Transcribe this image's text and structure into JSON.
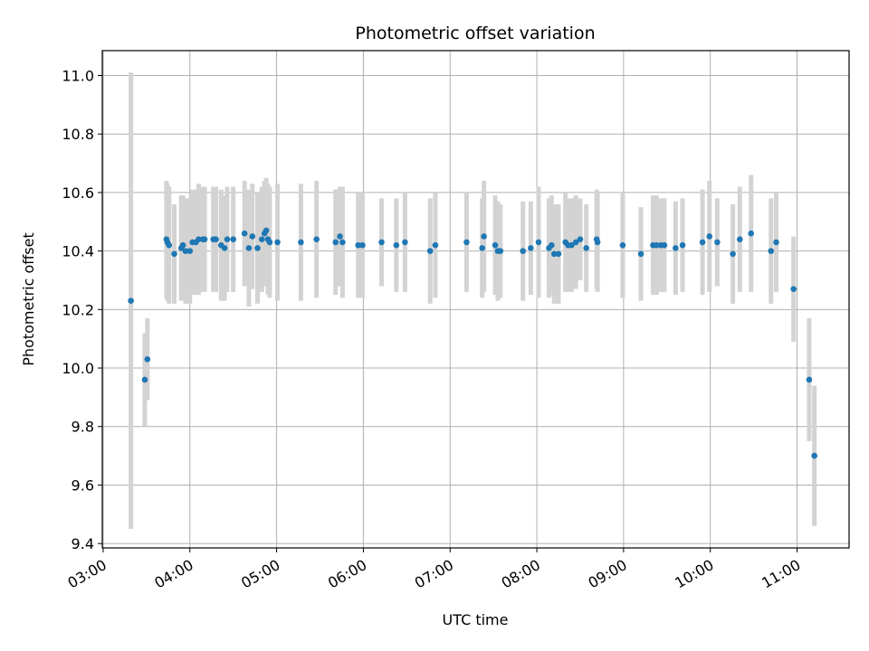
{
  "chart_data": {
    "type": "scatter",
    "title": "Photometric offset variation",
    "xlabel": "UTC time",
    "ylabel": "Photometric offset",
    "x_unit": "hours UTC",
    "xlim": [
      2.99,
      11.6
    ],
    "ylim": [
      9.385,
      11.085
    ],
    "grid": true,
    "x_ticks": [
      3,
      4,
      5,
      6,
      7,
      8,
      9,
      10,
      11
    ],
    "x_tick_labels": [
      "03:00",
      "04:00",
      "05:00",
      "06:00",
      "07:00",
      "08:00",
      "09:00",
      "10:00",
      "11:00"
    ],
    "y_ticks": [
      9.4,
      9.6,
      9.8,
      10.0,
      10.2,
      10.4,
      10.6,
      10.8,
      11.0
    ],
    "y_tick_labels": [
      "9.4",
      "9.6",
      "9.8",
      "10.0",
      "10.2",
      "10.4",
      "10.6",
      "10.8",
      "11.0"
    ],
    "colors": {
      "marker": "#1f77b4",
      "errorbar": "#d3d3d3",
      "grid": "#b0b0b0"
    },
    "series": [
      {
        "x": [
          3.32,
          3.48,
          3.51,
          3.73,
          3.74,
          3.76,
          3.82,
          3.9,
          3.92,
          3.95,
          4.0,
          4.03,
          4.07,
          4.1,
          4.15,
          4.17,
          4.27,
          4.3,
          4.36,
          4.4,
          4.43,
          4.5,
          4.63,
          4.68,
          4.72,
          4.78,
          4.83,
          4.86,
          4.88,
          4.9,
          4.92,
          5.01,
          5.28,
          5.46,
          5.68,
          5.73,
          5.76,
          5.94,
          5.99,
          6.21,
          6.38,
          6.48,
          6.77,
          6.83,
          7.19,
          7.37,
          7.39,
          7.52,
          7.55,
          7.58,
          7.84,
          7.93,
          8.02,
          8.14,
          8.17,
          8.2,
          8.25,
          8.33,
          8.36,
          8.4,
          8.45,
          8.5,
          8.57,
          8.69,
          8.7,
          8.99,
          9.2,
          9.34,
          9.38,
          9.43,
          9.47,
          9.6,
          9.68,
          9.91,
          9.99,
          10.08,
          10.26,
          10.34,
          10.47,
          10.7,
          10.76,
          10.96,
          11.14,
          11.2
        ],
        "y": [
          10.23,
          9.96,
          10.03,
          10.44,
          10.43,
          10.42,
          10.39,
          10.41,
          10.42,
          10.4,
          10.4,
          10.43,
          10.43,
          10.44,
          10.44,
          10.44,
          10.44,
          10.44,
          10.42,
          10.41,
          10.44,
          10.44,
          10.46,
          10.41,
          10.45,
          10.41,
          10.44,
          10.46,
          10.47,
          10.44,
          10.43,
          10.43,
          10.43,
          10.44,
          10.43,
          10.45,
          10.43,
          10.42,
          10.42,
          10.43,
          10.42,
          10.43,
          10.4,
          10.42,
          10.43,
          10.41,
          10.45,
          10.42,
          10.4,
          10.4,
          10.4,
          10.41,
          10.43,
          10.41,
          10.42,
          10.39,
          10.39,
          10.43,
          10.42,
          10.42,
          10.43,
          10.44,
          10.41,
          10.44,
          10.43,
          10.42,
          10.39,
          10.42,
          10.42,
          10.42,
          10.42,
          10.41,
          10.42,
          10.43,
          10.45,
          10.43,
          10.39,
          10.44,
          10.46,
          10.4,
          10.43,
          10.27,
          9.96,
          9.7
        ],
        "yerr": [
          0.78,
          0.16,
          0.14,
          0.2,
          0.2,
          0.2,
          0.17,
          0.18,
          0.17,
          0.18,
          0.18,
          0.18,
          0.18,
          0.19,
          0.18,
          0.18,
          0.18,
          0.18,
          0.19,
          0.18,
          0.18,
          0.18,
          0.18,
          0.2,
          0.18,
          0.19,
          0.18,
          0.18,
          0.18,
          0.19,
          0.19,
          0.2,
          0.2,
          0.2,
          0.18,
          0.17,
          0.19,
          0.18,
          0.18,
          0.15,
          0.16,
          0.17,
          0.18,
          0.18,
          0.17,
          0.17,
          0.19,
          0.17,
          0.17,
          0.16,
          0.17,
          0.16,
          0.19,
          0.17,
          0.17,
          0.17,
          0.17,
          0.17,
          0.16,
          0.16,
          0.16,
          0.14,
          0.15,
          0.17,
          0.17,
          0.18,
          0.16,
          0.17,
          0.17,
          0.16,
          0.16,
          0.16,
          0.16,
          0.18,
          0.19,
          0.15,
          0.17,
          0.18,
          0.2,
          0.18,
          0.17,
          0.18,
          0.21,
          0.24
        ]
      }
    ]
  }
}
